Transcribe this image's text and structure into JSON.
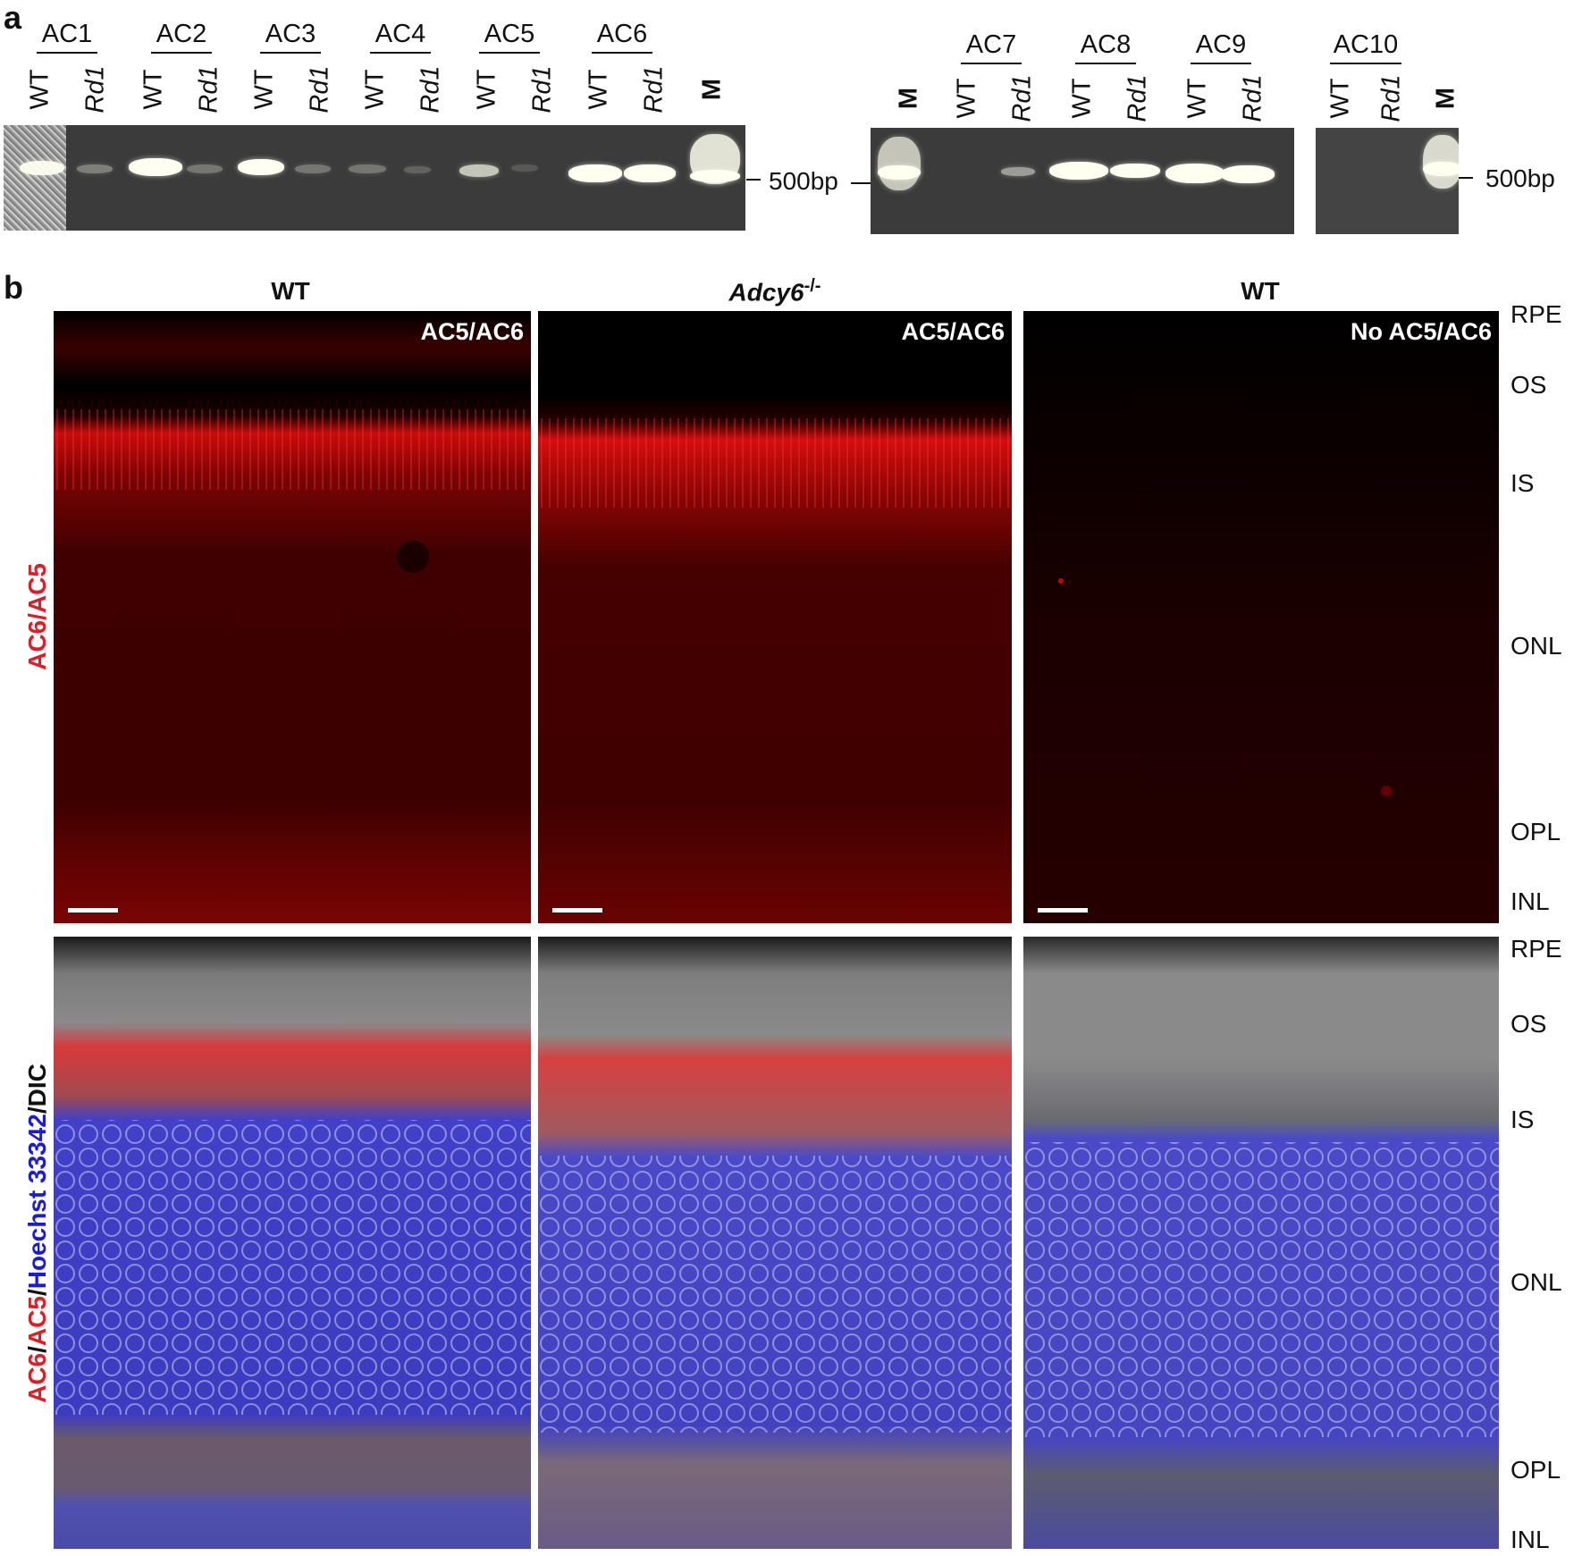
{
  "panel_a": {
    "label": "a",
    "groups_left": [
      "AC1",
      "AC2",
      "AC3",
      "AC4",
      "AC5",
      "AC6"
    ],
    "groups_right": [
      "AC7",
      "AC8",
      "AC9"
    ],
    "groups_far": [
      "AC10"
    ],
    "wt": "WT",
    "rd1": "Rd1",
    "marker": "M",
    "size_label": "500bp"
  },
  "panel_b": {
    "label": "b",
    "col_titles": [
      "WT",
      "Adcy6",
      "-/-",
      "WT"
    ],
    "corner_tags": [
      "AC5/AC6",
      "AC5/AC6",
      "No AC5/AC6"
    ],
    "layers_top": [
      "RPE",
      "OS",
      "IS",
      "ONL",
      "OPL",
      "INL"
    ],
    "layers_bottom": [
      "RPE",
      "OS",
      "IS",
      "ONL",
      "OPL",
      "INL"
    ],
    "row1_label": {
      "ac6": "AC6",
      "slash": "/",
      "ac5": "AC5"
    },
    "row2_label": {
      "ac6": "AC6",
      "slash1": "/",
      "ac5": "AC5",
      "slash2": "/",
      "hoechst": "Hoechst 33342",
      "slash3": "/",
      "dic": "DIC"
    },
    "colors": {
      "red": "#e31b23",
      "blue": "#1a1adb",
      "gel": "#3b3b3b"
    }
  }
}
